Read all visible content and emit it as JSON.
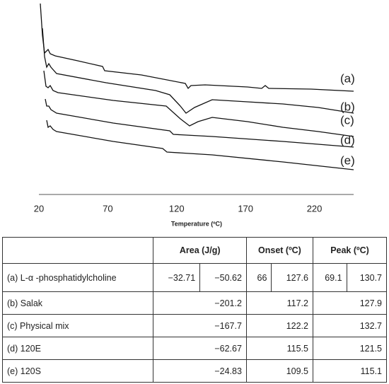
{
  "figure": {
    "x_label": "Temperature (ºC)",
    "xlim": [
      20,
      250
    ],
    "xticks": [
      20,
      70,
      120,
      170,
      220
    ],
    "curve_labels": [
      "(a)",
      "(b)",
      "(c)",
      "(d)",
      "(e)"
    ]
  },
  "table": {
    "header": [
      "Area (J/g)",
      "Onset (ºC)",
      "Peak (ºC)"
    ],
    "rows": [
      [
        "(a) L-α -phosphatidylcholine",
        "−32.71",
        "−50.62",
        "66",
        "127.6",
        "69.1",
        "130.7"
      ],
      [
        "(b) Salak",
        "−201.2",
        "117.2",
        "127.9"
      ],
      [
        "(c) Physical mix",
        "−167.7",
        "122.2",
        "132.7"
      ],
      [
        "(d) 120E",
        "−62.67",
        "115.5",
        "121.5"
      ],
      [
        "(e) 120S",
        "−24.83",
        "109.5",
        "115.1"
      ]
    ]
  }
}
